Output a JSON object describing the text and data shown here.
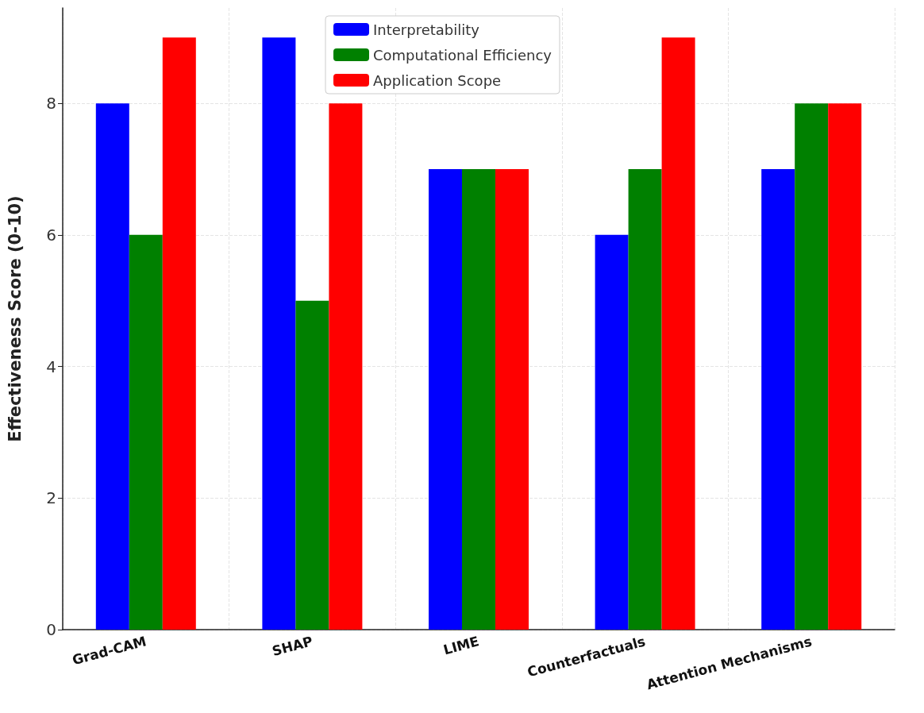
{
  "chart_data": {
    "type": "bar",
    "ylabel": "Effectiveness Score (0-10)",
    "categories": [
      "Grad-CAM",
      "SHAP",
      "LIME",
      "Counterfactuals",
      "Attention Mechanisms"
    ],
    "series": [
      {
        "name": "Interpretability",
        "color": "#0000ff",
        "values": [
          8,
          9,
          7,
          6,
          7
        ]
      },
      {
        "name": "Computational Efficiency",
        "color": "#008000",
        "values": [
          6,
          5,
          7,
          7,
          8
        ]
      },
      {
        "name": "Application Scope",
        "color": "#ff0000",
        "values": [
          9,
          8,
          7,
          9,
          8
        ]
      }
    ],
    "ylim": [
      0,
      9.45
    ],
    "yticks": [
      0,
      2,
      4,
      6,
      8
    ],
    "grid": true,
    "legend": "top"
  }
}
